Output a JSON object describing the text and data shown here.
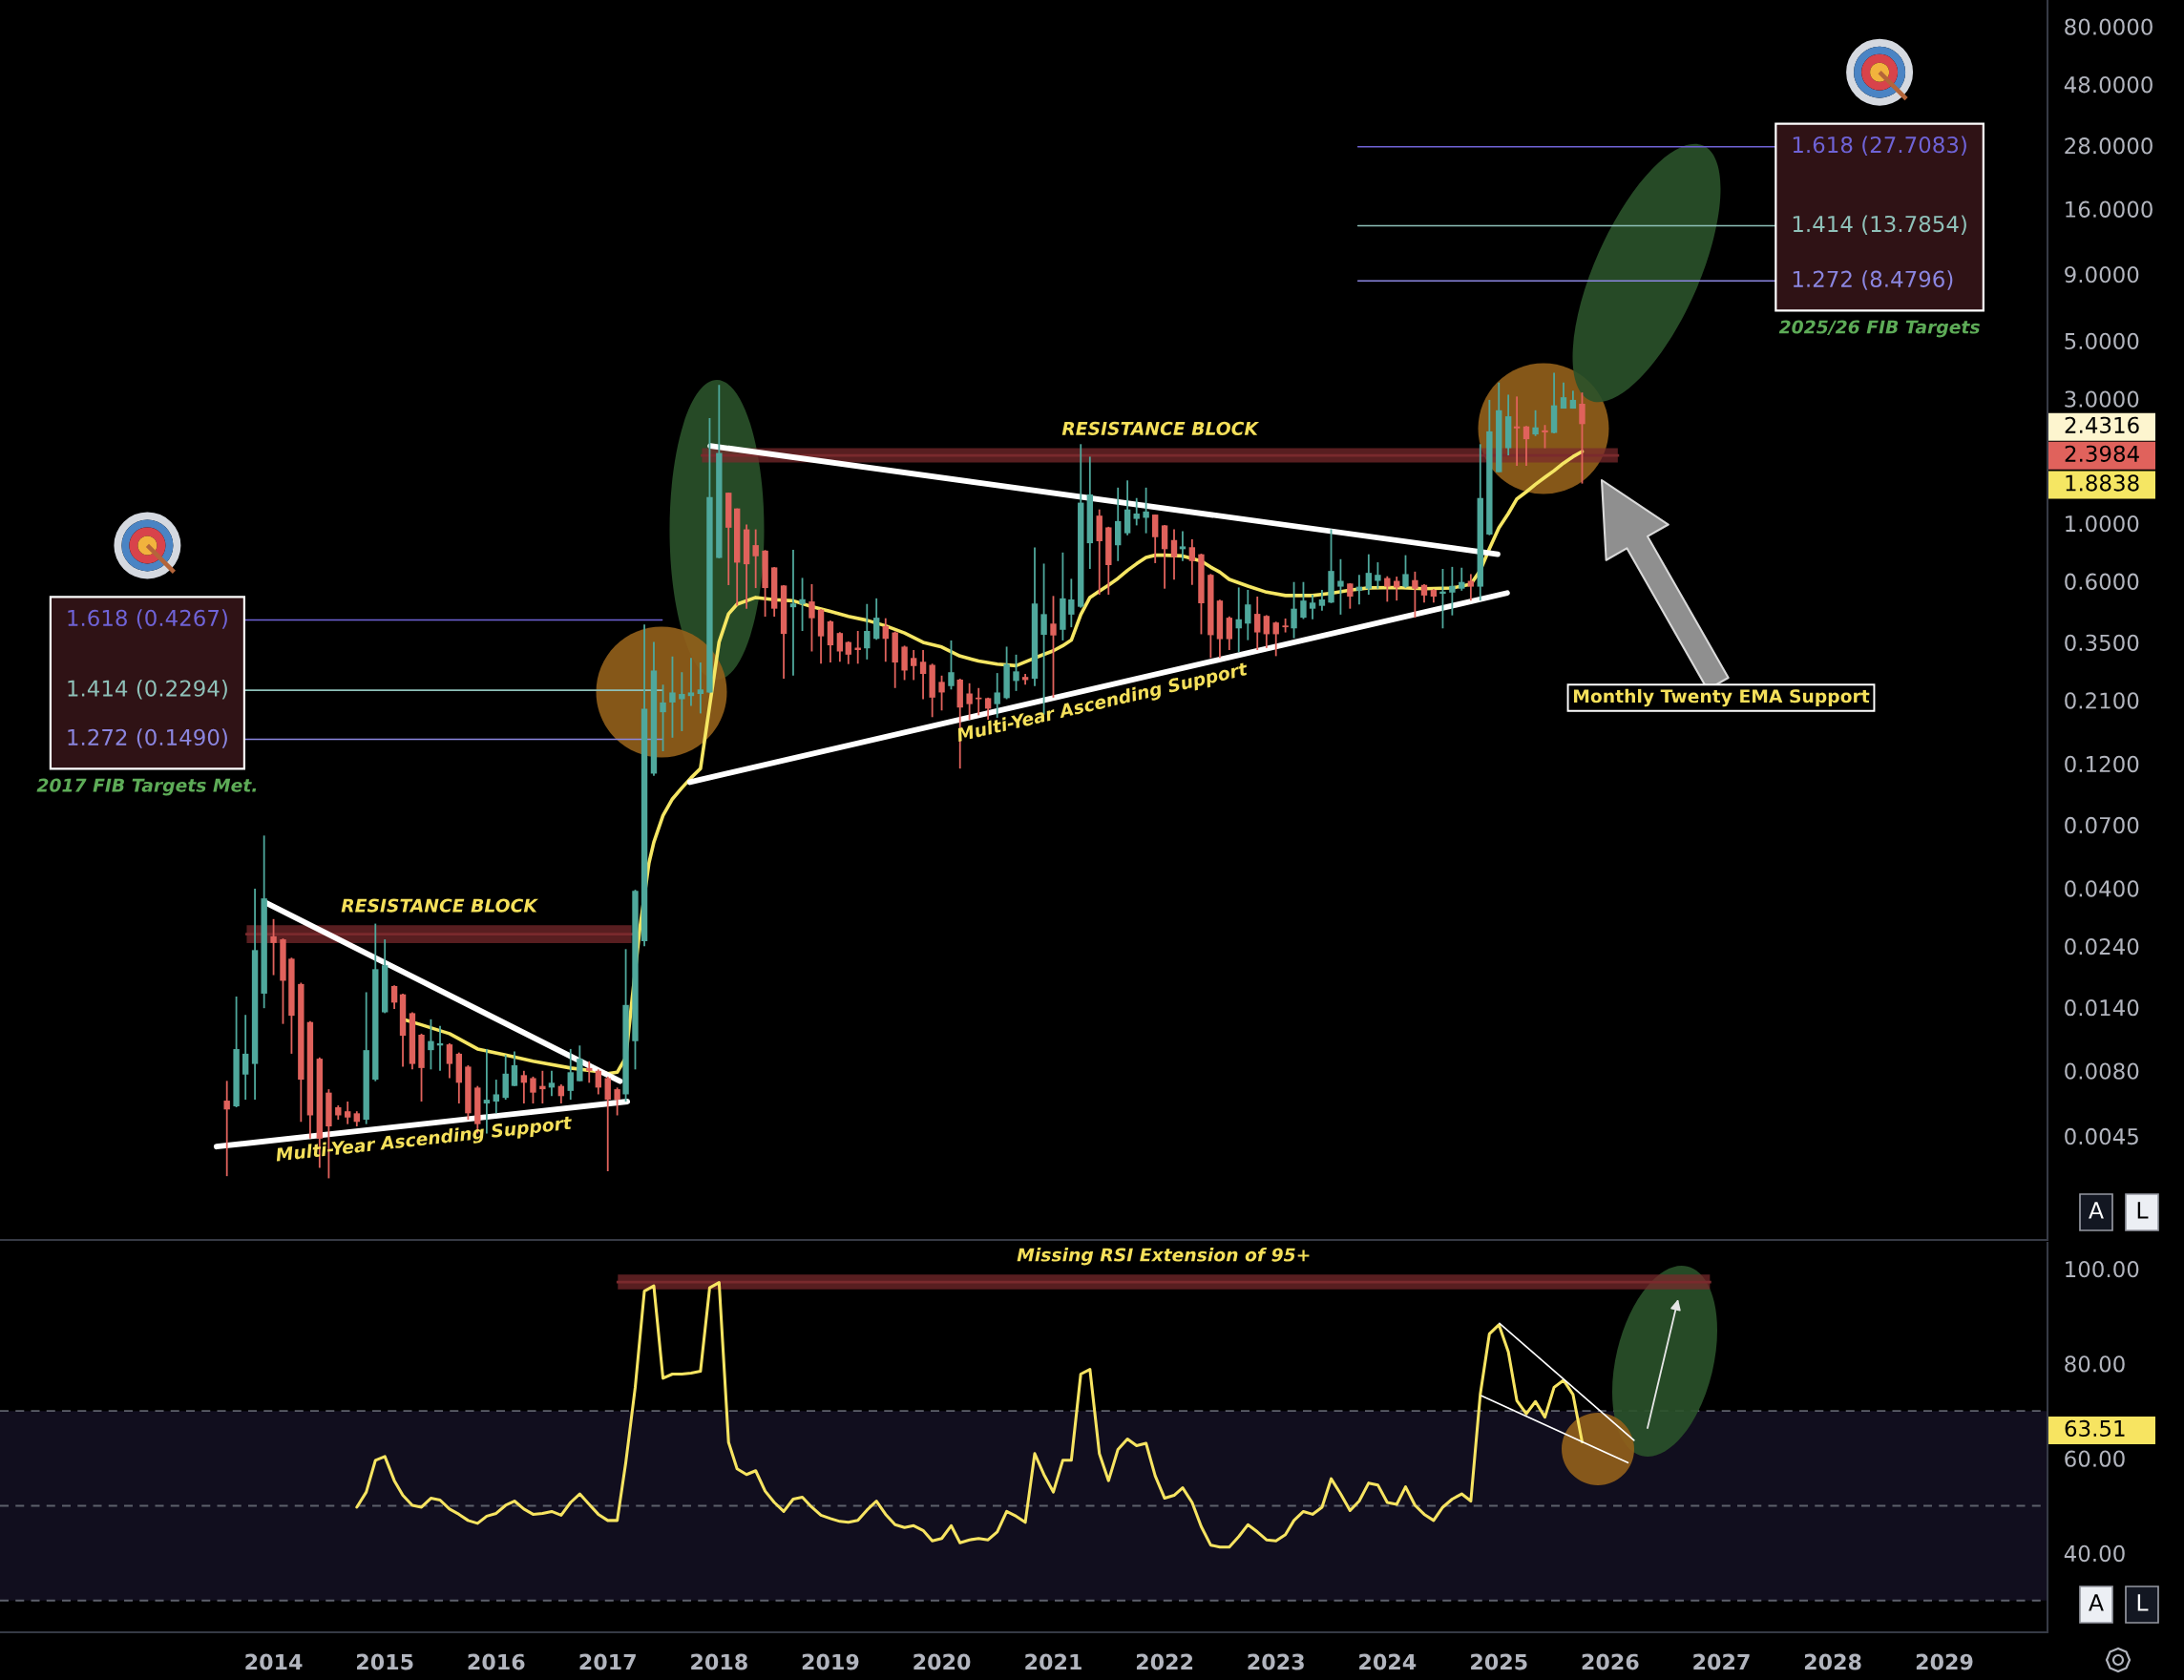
{
  "chart_data": [
    {
      "type": "candlestick",
      "log": true,
      "tick_labels": "y",
      "xlim": [
        "2011-07-19",
        "2029-12-05"
      ],
      "ylim": [
        0.0018,
        101
      ],
      "yticks": [
        {
          "value": 80,
          "label": "80.0000"
        },
        {
          "value": 48,
          "label": "48.0000"
        },
        {
          "value": 28,
          "label": "28.0000"
        },
        {
          "value": 16,
          "label": "16.0000"
        },
        {
          "value": 9,
          "label": "9.0000"
        },
        {
          "value": 5,
          "label": "5.0000"
        },
        {
          "value": 3,
          "label": "3.0000"
        },
        {
          "value": 1,
          "label": "1.0000"
        },
        {
          "value": 0.6,
          "label": "0.6000"
        },
        {
          "value": 0.35,
          "label": "0.3500"
        },
        {
          "value": 0.21,
          "label": "0.2100"
        },
        {
          "value": 0.12,
          "label": "0.1200"
        },
        {
          "value": 0.07,
          "label": "0.0700"
        },
        {
          "value": 0.04,
          "label": "0.0400"
        },
        {
          "value": 0.024,
          "label": "0.0240"
        },
        {
          "value": 0.014,
          "label": "0.0140"
        },
        {
          "value": 0.008,
          "label": "0.0080"
        },
        {
          "value": 0.0045,
          "label": "0.0045"
        }
      ],
      "x": [
        "2013-08",
        "2013-09",
        "2013-10",
        "2013-11",
        "2013-12",
        "2014-01",
        "2014-02",
        "2014-03",
        "2014-04",
        "2014-05",
        "2014-06",
        "2014-07",
        "2014-08",
        "2014-09",
        "2014-10",
        "2014-11",
        "2014-12",
        "2015-01",
        "2015-02",
        "2015-03",
        "2015-04",
        "2015-05",
        "2015-06",
        "2015-07",
        "2015-08",
        "2015-09",
        "2015-10",
        "2015-11",
        "2015-12",
        "2016-01",
        "2016-02",
        "2016-03",
        "2016-04",
        "2016-05",
        "2016-06",
        "2016-07",
        "2016-08",
        "2016-09",
        "2016-10",
        "2016-11",
        "2016-12",
        "2017-01",
        "2017-02",
        "2017-03",
        "2017-04",
        "2017-05",
        "2017-06",
        "2017-07",
        "2017-08",
        "2017-09",
        "2017-10",
        "2017-11",
        "2017-12",
        "2018-01",
        "2018-02",
        "2018-03",
        "2018-04",
        "2018-05",
        "2018-06",
        "2018-07",
        "2018-08",
        "2018-09",
        "2018-10",
        "2018-11",
        "2018-12",
        "2019-01",
        "2019-02",
        "2019-03",
        "2019-04",
        "2019-05",
        "2019-06",
        "2019-07",
        "2019-08",
        "2019-09",
        "2019-10",
        "2019-11",
        "2019-12",
        "2020-01",
        "2020-02",
        "2020-03",
        "2020-04",
        "2020-05",
        "2020-06",
        "2020-07",
        "2020-08",
        "2020-09",
        "2020-10",
        "2020-11",
        "2020-12",
        "2021-01",
        "2021-02",
        "2021-03",
        "2021-04",
        "2021-05",
        "2021-06",
        "2021-07",
        "2021-08",
        "2021-09",
        "2021-10",
        "2021-11",
        "2021-12",
        "2022-01",
        "2022-02",
        "2022-03",
        "2022-04",
        "2022-05",
        "2022-06",
        "2022-07",
        "2022-08",
        "2022-09",
        "2022-10",
        "2022-11",
        "2022-12",
        "2023-01",
        "2023-02",
        "2023-03",
        "2023-04",
        "2023-05",
        "2023-06",
        "2023-07",
        "2023-08",
        "2023-09",
        "2023-10",
        "2023-11",
        "2023-12",
        "2024-01",
        "2024-02",
        "2024-03",
        "2024-04",
        "2024-05",
        "2024-06",
        "2024-07",
        "2024-08",
        "2024-09",
        "2024-10",
        "2024-11",
        "2024-12",
        "2025-01",
        "2025-02",
        "2025-03",
        "2025-04",
        "2025-05",
        "2025-06",
        "2025-07",
        "2025-08",
        "2025-09",
        "2025-10"
      ],
      "ohlc": [
        [
          0.00615,
          0.00732,
          0.00316,
          0.00569
        ],
        [
          0.00585,
          0.0154,
          0.0058,
          0.00969
        ],
        [
          0.00774,
          0.0131,
          0.0062,
          0.0093
        ],
        [
          0.0085,
          0.0399,
          0.0062,
          0.0232
        ],
        [
          0.0158,
          0.0637,
          0.0139,
          0.0366
        ],
        [
          0.0262,
          0.0305,
          0.0186,
          0.0247
        ],
        [
          0.0255,
          0.0257,
          0.0121,
          0.0177
        ],
        [
          0.0215,
          0.0217,
          0.0093,
          0.013
        ],
        [
          0.0172,
          0.0174,
          0.0051,
          0.0074
        ],
        [
          0.0123,
          0.0124,
          0.0044,
          0.0054
        ],
        [
          0.0089,
          0.009,
          0.0034,
          0.0044
        ],
        [
          0.0066,
          0.0068,
          0.0031,
          0.0049
        ],
        [
          0.0058,
          0.0059,
          0.0052,
          0.0054
        ],
        [
          0.0056,
          0.0061,
          0.005,
          0.0053
        ],
        [
          0.0055,
          0.0056,
          0.0049,
          0.0051
        ],
        [
          0.0052,
          0.016,
          0.005,
          0.0096
        ],
        [
          0.0074,
          0.0293,
          0.0073,
          0.0196
        ],
        [
          0.0134,
          0.0255,
          0.0133,
          0.0203
        ],
        [
          0.0169,
          0.017,
          0.0138,
          0.0146
        ],
        [
          0.0157,
          0.0158,
          0.0083,
          0.0109
        ],
        [
          0.0133,
          0.0134,
          0.0081,
          0.0085
        ],
        [
          0.011,
          0.0111,
          0.0061,
          0.0082
        ],
        [
          0.0096,
          0.0126,
          0.0081,
          0.0104
        ],
        [
          0.01,
          0.0119,
          0.008,
          0.0102
        ],
        [
          0.0101,
          0.0102,
          0.0075,
          0.0085
        ],
        [
          0.0093,
          0.0094,
          0.006,
          0.0072
        ],
        [
          0.0083,
          0.0084,
          0.0052,
          0.0055
        ],
        [
          0.0069,
          0.007,
          0.0046,
          0.005
        ],
        [
          0.006,
          0.0097,
          0.0046,
          0.0062
        ],
        [
          0.0061,
          0.0074,
          0.0055,
          0.0065
        ],
        [
          0.0063,
          0.0092,
          0.0062,
          0.0078
        ],
        [
          0.007,
          0.0095,
          0.007,
          0.0084
        ],
        [
          0.0077,
          0.008,
          0.006,
          0.0072
        ],
        [
          0.0075,
          0.0076,
          0.006,
          0.0066
        ],
        [
          0.007,
          0.008,
          0.006,
          0.0068
        ],
        [
          0.0069,
          0.008,
          0.0064,
          0.0072
        ],
        [
          0.007,
          0.0071,
          0.006,
          0.0064
        ],
        [
          0.0067,
          0.0097,
          0.0062,
          0.0079
        ],
        [
          0.0073,
          0.01,
          0.0073,
          0.0089
        ],
        [
          0.0082,
          0.0087,
          0.0072,
          0.008
        ],
        [
          0.008,
          0.0081,
          0.0065,
          0.0069
        ],
        [
          0.0075,
          0.0076,
          0.0033,
          0.0062
        ],
        [
          0.0068,
          0.0069,
          0.0054,
          0.0062
        ],
        [
          0.0065,
          0.0234,
          0.0061,
          0.0143
        ],
        [
          0.0104,
          0.0395,
          0.0081,
          0.0391
        ],
        [
          0.0251,
          0.41,
          0.024,
          0.195
        ],
        [
          0.11,
          0.351,
          0.108,
          0.273
        ],
        [
          0.189,
          0.241,
          0.134,
          0.206
        ],
        [
          0.206,
          0.309,
          0.151,
          0.225
        ],
        [
          0.212,
          0.269,
          0.16,
          0.222
        ],
        [
          0.218,
          0.305,
          0.2,
          0.225
        ],
        [
          0.222,
          0.293,
          0.187,
          0.231
        ],
        [
          0.225,
          2.53,
          0.224,
          1.26
        ],
        [
          0.737,
          3.39,
          0.735,
          1.86
        ],
        [
          1.31,
          1.31,
          0.58,
          0.962
        ],
        [
          1.14,
          1.14,
          0.484,
          0.707
        ],
        [
          0.948,
          0.989,
          0.471,
          0.697
        ],
        [
          0.825,
          0.948,
          0.565,
          0.748
        ],
        [
          0.786,
          0.79,
          0.439,
          0.565
        ],
        [
          0.678,
          0.68,
          0.439,
          0.471
        ],
        [
          0.578,
          0.58,
          0.254,
          0.377
        ],
        [
          0.477,
          0.791,
          0.261,
          0.493
        ],
        [
          0.491,
          0.618,
          0.387,
          0.512
        ],
        [
          0.502,
          0.585,
          0.323,
          0.433
        ],
        [
          0.467,
          0.47,
          0.29,
          0.369
        ],
        [
          0.421,
          0.425,
          0.293,
          0.341
        ],
        [
          0.38,
          0.383,
          0.295,
          0.323
        ],
        [
          0.351,
          0.353,
          0.289,
          0.314
        ],
        [
          0.334,
          0.387,
          0.29,
          0.327
        ],
        [
          0.332,
          0.491,
          0.301,
          0.387
        ],
        [
          0.361,
          0.516,
          0.358,
          0.435
        ],
        [
          0.404,
          0.433,
          0.295,
          0.361
        ],
        [
          0.382,
          0.385,
          0.234,
          0.293
        ],
        [
          0.337,
          0.34,
          0.251,
          0.273
        ],
        [
          0.305,
          0.327,
          0.251,
          0.284
        ],
        [
          0.295,
          0.327,
          0.212,
          0.265
        ],
        [
          0.287,
          0.29,
          0.181,
          0.215
        ],
        [
          0.247,
          0.261,
          0.192,
          0.225
        ],
        [
          0.238,
          0.356,
          0.231,
          0.269
        ],
        [
          0.252,
          0.254,
          0.115,
          0.197
        ],
        [
          0.223,
          0.244,
          0.177,
          0.203
        ],
        [
          0.215,
          0.234,
          0.184,
          0.212
        ],
        [
          0.214,
          0.215,
          0.177,
          0.195
        ],
        [
          0.203,
          0.267,
          0.18,
          0.225
        ],
        [
          0.214,
          0.337,
          0.212,
          0.289
        ],
        [
          0.249,
          0.314,
          0.228,
          0.271
        ],
        [
          0.258,
          0.265,
          0.241,
          0.251
        ],
        [
          0.254,
          0.809,
          0.238,
          0.493
        ],
        [
          0.374,
          0.701,
          0.185,
          0.449
        ],
        [
          0.413,
          0.527,
          0.215,
          0.372
        ],
        [
          0.391,
          0.773,
          0.356,
          0.516
        ],
        [
          0.447,
          0.613,
          0.4,
          0.511
        ],
        [
          0.479,
          2.01,
          0.475,
          1.2
        ],
        [
          0.839,
          1.8,
          0.669,
          1.29
        ],
        [
          1.07,
          1.13,
          0.533,
          0.854
        ],
        [
          0.965,
          0.97,
          0.533,
          0.692
        ],
        [
          0.824,
          1.37,
          0.717,
          1.02
        ],
        [
          0.916,
          1.46,
          0.9,
          1.13
        ],
        [
          1.04,
          1.25,
          0.982,
          1.09
        ],
        [
          1.05,
          1.37,
          0.916,
          1.11
        ],
        [
          1.08,
          1.08,
          0.704,
          0.885
        ],
        [
          0.982,
          0.985,
          0.562,
          0.796
        ],
        [
          0.863,
          0.948,
          0.609,
          0.742
        ],
        [
          0.796,
          0.932,
          0.717,
          0.816
        ],
        [
          0.81,
          0.869,
          0.581,
          0.717
        ],
        [
          0.761,
          0.765,
          0.376,
          0.494
        ],
        [
          0.635,
          0.64,
          0.305,
          0.373
        ],
        [
          0.506,
          0.51,
          0.305,
          0.36
        ],
        [
          0.435,
          0.44,
          0.327,
          0.36
        ],
        [
          0.396,
          0.568,
          0.321,
          0.429
        ],
        [
          0.413,
          0.556,
          0.357,
          0.489
        ],
        [
          0.45,
          0.524,
          0.327,
          0.382
        ],
        [
          0.442,
          0.445,
          0.333,
          0.376
        ],
        [
          0.417,
          0.42,
          0.31,
          0.376
        ],
        [
          0.406,
          0.432,
          0.382,
          0.4
        ],
        [
          0.396,
          0.596,
          0.363,
          0.471
        ],
        [
          0.435,
          0.596,
          0.43,
          0.506
        ],
        [
          0.471,
          0.533,
          0.429,
          0.497
        ],
        [
          0.483,
          0.556,
          0.463,
          0.511
        ],
        [
          0.497,
          0.948,
          0.495,
          0.657
        ],
        [
          0.572,
          0.729,
          0.447,
          0.602
        ],
        [
          0.588,
          0.59,
          0.471,
          0.524
        ],
        [
          0.552,
          0.635,
          0.489,
          0.572
        ],
        [
          0.562,
          0.761,
          0.533,
          0.646
        ],
        [
          0.602,
          0.709,
          0.562,
          0.635
        ],
        [
          0.617,
          0.627,
          0.501,
          0.572
        ],
        [
          0.602,
          0.625,
          0.506,
          0.568
        ],
        [
          0.572,
          0.755,
          0.566,
          0.639
        ],
        [
          0.606,
          0.653,
          0.435,
          0.562
        ],
        [
          0.581,
          0.585,
          0.497,
          0.529
        ],
        [
          0.556,
          0.56,
          0.497,
          0.524
        ],
        [
          0.537,
          0.669,
          0.396,
          0.548
        ],
        [
          0.543,
          0.681,
          0.444,
          0.576
        ],
        [
          0.562,
          0.676,
          0.552,
          0.596
        ],
        [
          0.602,
          0.639,
          0.506,
          0.572
        ],
        [
          0.572,
          2.01,
          0.506,
          1.25
        ],
        [
          0.906,
          2.97,
          0.9,
          2.25
        ],
        [
          1.57,
          3.46,
          1.57,
          2.71
        ],
        [
          1.94,
          3.11,
          1.82,
          2.57
        ],
        [
          2.35,
          3.06,
          1.66,
          2.31
        ],
        [
          2.35,
          2.36,
          1.66,
          2.1
        ],
        [
          2.19,
          2.71,
          2.16,
          2.33
        ],
        [
          2.27,
          2.38,
          1.94,
          2.23
        ],
        [
          2.22,
          3.77,
          2.21,
          2.83
        ],
        [
          2.75,
          3.46,
          2.75,
          3.04
        ],
        [
          2.75,
          3.22,
          2.75,
          2.97
        ],
        [
          2.87,
          3.17,
          1.42,
          2.3984
        ]
      ],
      "series": [
        {
          "type": "line",
          "color": "#f5e663",
          "x": [
            "2015-03",
            "2015-05",
            "2015-08",
            "2015-11",
            "2016-02",
            "2016-05",
            "2016-09",
            "2016-12-16",
            "2017-01",
            "2017-02",
            "2017-03",
            "2017-04-16",
            "2017-05-16",
            "2017-06",
            "2017-07",
            "2017-08",
            "2017-09",
            "2017-10",
            "2017-11",
            "2017-12",
            "2018-01",
            "2018-02",
            "2018-03",
            "2018-05",
            "2018-07",
            "2018-09",
            "2018-11",
            "2019-01",
            "2019-03",
            "2019-05",
            "2019-07",
            "2019-09",
            "2019-11",
            "2020-01",
            "2020-03",
            "2020-05",
            "2020-07",
            "2020-09",
            "2020-11",
            "2021-01",
            "2021-02",
            "2021-03",
            "2021-04",
            "2021-05",
            "2021-06",
            "2021-07",
            "2021-08",
            "2021-09",
            "2021-10",
            "2021-11",
            "2021-12",
            "2022-01",
            "2022-03",
            "2022-05",
            "2022-06",
            "2022-07",
            "2022-08",
            "2022-10",
            "2022-12",
            "2023-02",
            "2023-05",
            "2023-07",
            "2023-09",
            "2023-11",
            "2024-02",
            "2024-05",
            "2024-08",
            "2024-10",
            "2024-11",
            "2024-12",
            "2025-01",
            "2025-02",
            "2025-03",
            "2025-04",
            "2025-05",
            "2025-06",
            "2025-07",
            "2025-08",
            "2025-09",
            "2025-10"
          ],
          "values": [
            0.0126,
            0.012,
            0.0111,
            0.0097,
            0.0092,
            0.0087,
            0.0082,
            0.0079,
            0.0078,
            0.0079,
            0.009,
            0.028,
            0.05,
            0.06,
            0.076,
            0.088,
            0.097,
            0.106,
            0.115,
            0.2,
            0.351,
            0.45,
            0.49,
            0.52,
            0.51,
            0.505,
            0.48,
            0.46,
            0.44,
            0.425,
            0.405,
            0.38,
            0.35,
            0.336,
            0.31,
            0.297,
            0.289,
            0.285,
            0.305,
            0.325,
            0.34,
            0.357,
            0.447,
            0.52,
            0.55,
            0.58,
            0.615,
            0.66,
            0.7,
            0.74,
            0.755,
            0.755,
            0.75,
            0.717,
            0.68,
            0.65,
            0.61,
            0.575,
            0.545,
            0.529,
            0.529,
            0.54,
            0.555,
            0.566,
            0.568,
            0.562,
            0.565,
            0.585,
            0.66,
            0.8,
            0.96,
            1.09,
            1.24,
            1.32,
            1.41,
            1.5,
            1.59,
            1.7,
            1.8,
            1.8838
          ]
        },
        {
          "type": "line",
          "color": "#ffffff",
          "x": [
            "2013-12-03",
            "2017-02-10"
          ],
          "values": [
            0.0354,
            0.0073
          ]
        },
        {
          "type": "line",
          "name": "Multi-Year Ascending Support",
          "color": "#ffffff",
          "x": [
            "2013-06-28",
            "2017-03-06"
          ],
          "values": [
            0.0041,
            0.0061
          ]
        },
        {
          "type": "line",
          "color": "#ffffff",
          "x": [
            "2017-12-03",
            "2024-12-28"
          ],
          "values": [
            1.98,
            0.762
          ]
        },
        {
          "type": "line",
          "name": "Multi-Year Ascending Support",
          "color": "#ffffff",
          "x": [
            "2017-09-27",
            "2025-01-28"
          ],
          "values": [
            0.102,
            0.541
          ]
        },
        {
          "type": "line",
          "name": "RESISTANCE BLOCK",
          "color": "#7a2a2d",
          "x": [
            "2013-10-05",
            "2017-03-20"
          ],
          "values": [
            0.0267,
            0.0267
          ],
          "lower": [
            0.0247,
            0.0247
          ],
          "upper": [
            0.0289,
            0.0289
          ]
        },
        {
          "type": "line",
          "name": "RESISTANCE BLOCK",
          "color": "#7a2a2d",
          "x": [
            "2017-11-06",
            "2026-01-26"
          ],
          "values": [
            1.82,
            1.82
          ],
          "lower": [
            1.71,
            1.71
          ],
          "upper": [
            1.94,
            1.94
          ]
        },
        {
          "type": "line",
          "name": "1.618 (0.4267)",
          "color": "#6f63d6",
          "x": [
            "2013-09-27",
            "2017-06-28"
          ],
          "values": [
            0.4267,
            0.4267
          ]
        },
        {
          "type": "line",
          "name": "1.414 (0.2294)",
          "color": "#8fc1b9",
          "x": [
            "2013-09-27",
            "2017-06-28"
          ],
          "values": [
            0.2294,
            0.2294
          ]
        },
        {
          "type": "line",
          "name": "1.272 (0.1490)",
          "color": "#8b86e0",
          "x": [
            "2013-09-27",
            "2017-06-28"
          ],
          "values": [
            0.149,
            0.149
          ]
        },
        {
          "type": "line",
          "name": "1.618 (27.7083)",
          "color": "#6f63d6",
          "x": [
            "2023-09-27",
            "2027-06-28"
          ],
          "values": [
            27.7083,
            27.7083
          ]
        },
        {
          "type": "line",
          "name": "1.414 (13.7854)",
          "color": "#8fc1b9",
          "x": [
            "2023-09-27",
            "2027-06-28"
          ],
          "values": [
            13.7854,
            13.7854
          ]
        },
        {
          "type": "line",
          "name": "1.272 (8.4796)",
          "color": "#8b86e0",
          "x": [
            "2023-09-27",
            "2027-06-28"
          ],
          "values": [
            8.4796,
            8.4796
          ]
        }
      ],
      "annotations": [
        "2017 FIB Targets Met.",
        "2025/26 FIB Targets",
        "Monthly Twenty EMA Support",
        "2.4316",
        "2.3984",
        "1.8838",
        "A",
        "L"
      ]
    },
    {
      "type": "line",
      "xlim": [
        "2011-07-19",
        "2029-12-05"
      ],
      "xticks": [
        "2014",
        "2015",
        "2016",
        "2017",
        "2018",
        "2019",
        "2020",
        "2021",
        "2022",
        "2023",
        "2024",
        "2025",
        "2026",
        "2027",
        "2028",
        "2029"
      ],
      "ylim": [
        23.3,
        105.5
      ],
      "yticks": [
        {
          "value": 100,
          "label": "100.00"
        },
        {
          "value": 80,
          "label": "80.00"
        },
        {
          "value": 60,
          "label": "60.00"
        },
        {
          "value": 40,
          "label": "40.00"
        }
      ],
      "series": [
        {
          "color": "#f7e461",
          "x": [
            "2014-10",
            "2014-11",
            "2014-12",
            "2015-01",
            "2015-02",
            "2015-03",
            "2015-04",
            "2015-05",
            "2015-06",
            "2015-07",
            "2015-08",
            "2015-09",
            "2015-10",
            "2015-11",
            "2015-12",
            "2016-01",
            "2016-02",
            "2016-03",
            "2016-04",
            "2016-05",
            "2016-06",
            "2016-07",
            "2016-08",
            "2016-09",
            "2016-10",
            "2016-11",
            "2016-12",
            "2017-01",
            "2017-02",
            "2017-03",
            "2017-04",
            "2017-05",
            "2017-06",
            "2017-07",
            "2017-08",
            "2017-09",
            "2017-10",
            "2017-11",
            "2017-12",
            "2018-01",
            "2018-02",
            "2018-03",
            "2018-04",
            "2018-05",
            "2018-06",
            "2018-07",
            "2018-08",
            "2018-09",
            "2018-10",
            "2018-11",
            "2018-12",
            "2019-01",
            "2019-02",
            "2019-03",
            "2019-04",
            "2019-05",
            "2019-06",
            "2019-07",
            "2019-08",
            "2019-09",
            "2019-10",
            "2019-11",
            "2019-12",
            "2020-01",
            "2020-02",
            "2020-03",
            "2020-04",
            "2020-05",
            "2020-06",
            "2020-07",
            "2020-08",
            "2020-09",
            "2020-10",
            "2020-11",
            "2020-12",
            "2021-01",
            "2021-02",
            "2021-03",
            "2021-04",
            "2021-05",
            "2021-06",
            "2021-07",
            "2021-08",
            "2021-09",
            "2021-10",
            "2021-11",
            "2021-12",
            "2022-01",
            "2022-02",
            "2022-03",
            "2022-04",
            "2022-05",
            "2022-06",
            "2022-07",
            "2022-08",
            "2022-09",
            "2022-10",
            "2022-11",
            "2022-12",
            "2023-01",
            "2023-02",
            "2023-03",
            "2023-04",
            "2023-05",
            "2023-06",
            "2023-07",
            "2023-08",
            "2023-09",
            "2023-10",
            "2023-11",
            "2023-12",
            "2024-01",
            "2024-02",
            "2024-03",
            "2024-04",
            "2024-05",
            "2024-06",
            "2024-07",
            "2024-08",
            "2024-09",
            "2024-10",
            "2024-11",
            "2024-12",
            "2025-01",
            "2025-02",
            "2025-03",
            "2025-04",
            "2025-05",
            "2025-06",
            "2025-07",
            "2025-08",
            "2025-09",
            "2025-10"
          ],
          "values": [
            49.7,
            52.9,
            59.6,
            60.4,
            55.3,
            52.2,
            50.1,
            49.7,
            51.6,
            51.2,
            49.3,
            48.2,
            46.9,
            46.3,
            47.8,
            48.4,
            50.1,
            51.0,
            49.3,
            48.2,
            48.4,
            48.8,
            48.0,
            50.7,
            52.5,
            50.3,
            48.2,
            46.9,
            46.9,
            59.1,
            75.0,
            95.3,
            96.4,
            76.9,
            77.8,
            77.8,
            78.0,
            78.4,
            96.0,
            97.1,
            63.4,
            57.8,
            56.6,
            57.4,
            53.1,
            50.7,
            48.8,
            51.4,
            51.8,
            49.7,
            48.0,
            47.3,
            46.7,
            46.5,
            46.9,
            49.1,
            51.0,
            48.2,
            46.0,
            45.4,
            45.8,
            44.8,
            42.6,
            43.1,
            45.8,
            42.2,
            42.8,
            43.1,
            42.8,
            44.5,
            48.8,
            47.8,
            46.5,
            61.0,
            56.6,
            52.9,
            59.6,
            59.6,
            77.8,
            78.8,
            61.0,
            55.3,
            61.9,
            64.1,
            62.7,
            63.2,
            56.3,
            51.6,
            52.2,
            53.8,
            50.7,
            45.6,
            41.7,
            41.3,
            41.3,
            43.5,
            46.0,
            44.5,
            42.8,
            42.6,
            43.9,
            46.9,
            48.8,
            48.2,
            49.7,
            55.7,
            52.5,
            49.0,
            51.0,
            54.8,
            54.4,
            50.7,
            50.3,
            54.0,
            50.1,
            48.2,
            46.9,
            49.7,
            51.4,
            52.5,
            51.0,
            73.5,
            86.3,
            88.2,
            82.5,
            72.2,
            69.4,
            72.0,
            68.7,
            75.0,
            76.5,
            73.5,
            63.51
          ]
        },
        {
          "name": "Missing RSI Extension of 95+",
          "color": "#7a2a2d",
          "x": [
            "2017-02-03",
            "2026-11-24"
          ],
          "values": [
            97.2,
            97.2
          ],
          "lower": [
            95.7,
            95.7
          ],
          "upper": [
            98.8,
            98.8
          ]
        },
        {
          "color": "#ffffff",
          "x": [
            "2025-01-03",
            "2026-03-20"
          ],
          "values": [
            88.5,
            63.8
          ]
        },
        {
          "color": "#ffffff",
          "x": [
            "2024-11-05",
            "2026-02-28"
          ],
          "values": [
            73.2,
            59.1
          ]
        }
      ],
      "ref_lines": [
        {
          "axis": "y",
          "value": 70,
          "color": "#5d606b",
          "line_style": "dashed"
        },
        {
          "axis": "y",
          "value": 50,
          "color": "#5d606b",
          "line_style": "dashed"
        },
        {
          "axis": "y",
          "value": 30,
          "color": "#5d606b",
          "line_style": "dashed"
        }
      ],
      "bands": [
        {
          "axis": "y",
          "from": 30,
          "to": 70,
          "color": "#110e1e"
        }
      ],
      "annotations": [
        "63.51",
        "A",
        "L"
      ]
    }
  ]
}
